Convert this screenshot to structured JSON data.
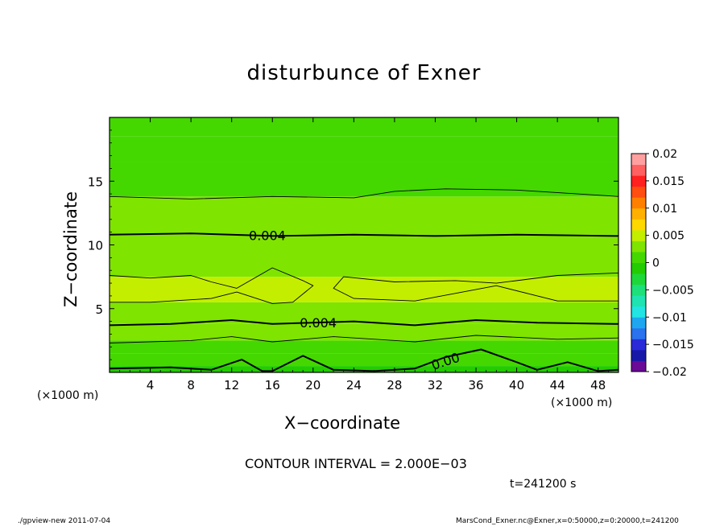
{
  "chart_data": {
    "type": "heatmap",
    "title": "disturbunce of Exner",
    "xlabel": "X−coordinate",
    "ylabel": "Z−coordinate",
    "x_unit": "(×1000 m)",
    "y_unit": "(×1000 m)",
    "xlim": [
      0,
      50
    ],
    "ylim": [
      0,
      20
    ],
    "x_ticks": [
      4,
      8,
      12,
      16,
      20,
      24,
      28,
      32,
      36,
      40,
      44,
      48
    ],
    "y_ticks": [
      5,
      10,
      15
    ],
    "colorbar": {
      "ticks": [
        "0.02",
        "0.015",
        "0.01",
        "0.005",
        "0",
        "−0.005",
        "−0.01",
        "−0.015",
        "−0.02"
      ],
      "range": [
        -0.02,
        0.02
      ],
      "colors": [
        "#6a0a96",
        "#1818a8",
        "#2a2ad8",
        "#2a72ee",
        "#1ea7f0",
        "#22e4e4",
        "#1fe3b0",
        "#1ee07a",
        "#1ed83a",
        "#22cc00",
        "#44d800",
        "#7fe400",
        "#c4ee00",
        "#ffd800",
        "#ffb000",
        "#ff8000",
        "#ff4e10",
        "#ff2020",
        "#ff6060",
        "#ffa0a0"
      ]
    },
    "contour_interval": 0.002,
    "contour_labels": [
      "0.004",
      "0.004",
      "0.00"
    ],
    "bands": [
      {
        "z_bottom": 0,
        "z_top": 0.5,
        "value": -0.0005
      },
      {
        "z_bottom": 0.5,
        "z_top": 1.5,
        "value": 0.0005
      },
      {
        "z_bottom": 1.5,
        "z_top": 2.5,
        "value": 0.0015
      },
      {
        "z_bottom": 2.5,
        "z_top": 3.8,
        "value": 0.0025
      },
      {
        "z_bottom": 3.8,
        "z_top": 5.5,
        "value": 0.0035
      },
      {
        "z_bottom": 5.5,
        "z_top": 7.5,
        "value": 0.0048
      },
      {
        "z_bottom": 7.5,
        "z_top": 10.8,
        "value": 0.0038
      },
      {
        "z_bottom": 10.8,
        "z_top": 13.8,
        "value": 0.0028
      },
      {
        "z_bottom": 13.8,
        "z_top": 16.5,
        "value": 0.0018
      },
      {
        "z_bottom": 16.5,
        "z_top": 18.5,
        "value": 0.0008
      },
      {
        "z_bottom": 18.5,
        "z_top": 20,
        "value": 0.0002
      }
    ],
    "contours": [
      {
        "label_index": 1,
        "weight": "thick",
        "points": [
          [
            0,
            3.7
          ],
          [
            6,
            3.8
          ],
          [
            12,
            4.1
          ],
          [
            16,
            3.8
          ],
          [
            20,
            3.9
          ],
          [
            24,
            4.0
          ],
          [
            30,
            3.7
          ],
          [
            36,
            4.1
          ],
          [
            42,
            3.9
          ],
          [
            50,
            3.8
          ]
        ]
      },
      {
        "label_index": null,
        "weight": "thin",
        "points": [
          [
            0,
            2.3
          ],
          [
            8,
            2.5
          ],
          [
            12,
            2.8
          ],
          [
            16,
            2.4
          ],
          [
            22,
            2.8
          ],
          [
            30,
            2.4
          ],
          [
            36,
            2.9
          ],
          [
            44,
            2.6
          ],
          [
            50,
            2.7
          ]
        ]
      },
      {
        "label_index": 2,
        "weight": "thick",
        "points": [
          [
            0,
            0.3
          ],
          [
            6,
            0.4
          ],
          [
            10,
            0.2
          ],
          [
            13,
            1.0
          ],
          [
            15,
            0.1
          ],
          [
            16,
            0.1
          ],
          [
            19,
            1.3
          ],
          [
            22,
            0.2
          ],
          [
            26,
            0.1
          ],
          [
            30,
            0.3
          ],
          [
            33,
            1.2
          ],
          [
            36.5,
            1.8
          ],
          [
            40,
            0.8
          ],
          [
            42,
            0.2
          ],
          [
            45,
            0.8
          ],
          [
            48,
            0.1
          ],
          [
            50,
            0.2
          ]
        ]
      },
      {
        "label_index": null,
        "weight": "thin",
        "points": [
          [
            0,
            7.6
          ],
          [
            4,
            7.4
          ],
          [
            8,
            7.6
          ],
          [
            10,
            7.1
          ],
          [
            12.5,
            6.6
          ],
          [
            16,
            8.2
          ],
          [
            19,
            7.2
          ],
          [
            20,
            6.8
          ],
          [
            18,
            5.5
          ],
          [
            16,
            5.4
          ],
          [
            12.5,
            6.3
          ],
          [
            10,
            5.8
          ],
          [
            4,
            5.5
          ],
          [
            0,
            5.5
          ]
        ]
      },
      {
        "label_index": null,
        "weight": "thin",
        "points": [
          [
            50,
            7.8
          ],
          [
            44,
            7.6
          ],
          [
            38,
            7.0
          ],
          [
            34,
            7.2
          ],
          [
            28,
            7.1
          ],
          [
            23,
            7.5
          ],
          [
            22,
            6.6
          ],
          [
            24,
            5.8
          ],
          [
            30,
            5.6
          ],
          [
            34,
            6.2
          ],
          [
            38,
            6.8
          ],
          [
            44,
            5.6
          ],
          [
            50,
            5.6
          ]
        ]
      },
      {
        "label_index": 0,
        "weight": "thick",
        "points": [
          [
            0,
            10.8
          ],
          [
            8,
            10.9
          ],
          [
            16,
            10.7
          ],
          [
            24,
            10.8
          ],
          [
            32,
            10.7
          ],
          [
            40,
            10.8
          ],
          [
            50,
            10.7
          ]
        ]
      },
      {
        "label_index": null,
        "weight": "thin",
        "points": [
          [
            0,
            13.8
          ],
          [
            8,
            13.6
          ],
          [
            16,
            13.8
          ],
          [
            24,
            13.7
          ],
          [
            28,
            14.2
          ],
          [
            33,
            14.4
          ],
          [
            40,
            14.3
          ],
          [
            50,
            13.8
          ]
        ]
      }
    ]
  },
  "annotations": {
    "contour_interval_text": "CONTOUR INTERVAL = 2.000E−03",
    "time_text": "t=241200 s",
    "footer_left": "./gpview-new   2011-07-04",
    "footer_right": "MarsCond_Exner.nc@Exner,x=0:50000,z=0:20000,t=241200"
  }
}
